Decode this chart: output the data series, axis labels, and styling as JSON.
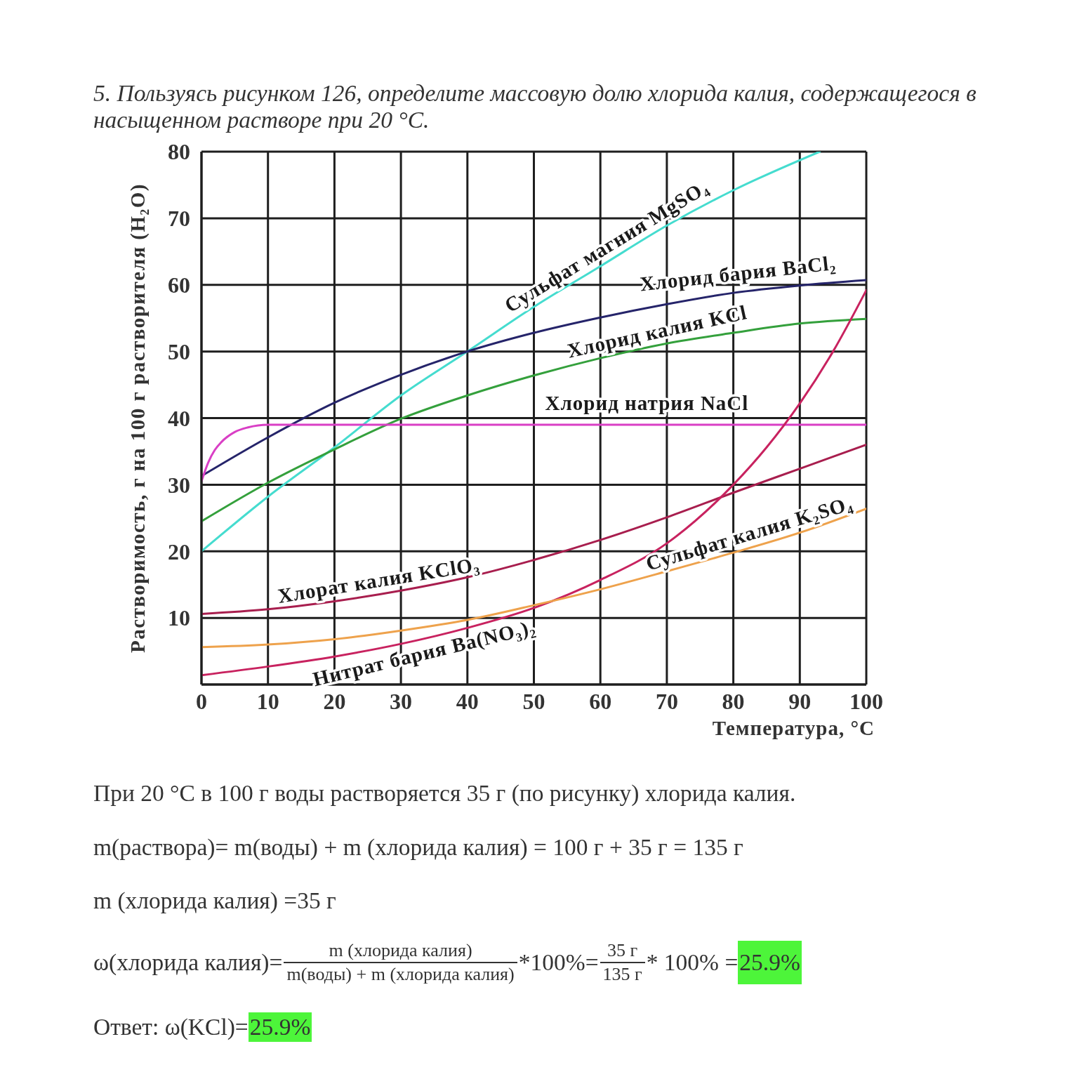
{
  "chart_data": {
    "type": "line",
    "title": "5. Пользуясь рисунком 126, определите массовую долю хлорида калия, содержащегося в насыщенном растворе при 20 °C.",
    "xlabel": "Температура, °C",
    "ylabel": "Растворимость, г на 100 г растворителя (H₂O)",
    "xlim": [
      0,
      100
    ],
    "xticks": [
      0,
      10,
      20,
      30,
      40,
      50,
      60,
      70,
      80,
      90,
      100
    ],
    "ylim": [
      0,
      80
    ],
    "yticks": [
      {
        "value": 0,
        "label": null
      },
      10,
      20,
      30,
      40,
      50,
      60,
      70,
      80
    ],
    "grid": true,
    "series": [
      {
        "name": "Сульфат магния MgSO₄",
        "color": "#45dccf",
        "x": [
          0,
          10,
          20,
          30,
          40,
          50,
          60,
          70,
          80,
          93
        ],
        "values": [
          20,
          28.2,
          35.6,
          43.4,
          50,
          56.7,
          62.8,
          68.9,
          74.2,
          80
        ]
      },
      {
        "name": "Хлорид бария BaCl₂",
        "color": "#25246a",
        "x": [
          0,
          10,
          20,
          30,
          40,
          50,
          60,
          70,
          80,
          90,
          100
        ],
        "values": [
          31.3,
          37.1,
          42.3,
          46.5,
          50,
          52.8,
          55.1,
          57.1,
          58.8,
          59.9,
          60.7
        ]
      },
      {
        "name": "Хлорид калия KCl",
        "color": "#34a03c",
        "x": [
          0,
          10,
          20,
          30,
          40,
          50,
          60,
          70,
          80,
          90,
          100
        ],
        "values": [
          24.5,
          30.3,
          35.3,
          39.9,
          43.4,
          46.4,
          49,
          51.2,
          52.8,
          54.2,
          54.9
        ]
      },
      {
        "name": "Хлорид натрия NaCl",
        "color": "#d93fc5",
        "x": [
          0,
          1,
          2,
          3,
          5,
          7,
          10,
          100
        ],
        "values": [
          30.5,
          33.3,
          35.2,
          36.4,
          37.9,
          38.6,
          39,
          39
        ]
      },
      {
        "name": "Хлорат калия KClO₃",
        "color": "#a81e4e",
        "x": [
          0,
          10,
          20,
          30,
          40,
          50,
          60,
          70,
          80,
          90,
          100
        ],
        "values": [
          10.6,
          11.3,
          12.5,
          14.1,
          16.1,
          18.7,
          21.7,
          25.1,
          28.8,
          32.4,
          36
        ]
      },
      {
        "name": "Нитрат бария Ba(NO₃)₂",
        "color": "#c8225f",
        "x": [
          0,
          10,
          20,
          30,
          40,
          50,
          60,
          70,
          80,
          85,
          90,
          95,
          100
        ],
        "values": [
          1.4,
          2.7,
          4.2,
          6.1,
          8.5,
          11.5,
          15.7,
          21.2,
          30,
          35.6,
          42.2,
          50,
          59.2
        ]
      },
      {
        "name": "Сульфат калия K₂SO₄",
        "color": "#eea24c",
        "x": [
          0,
          10,
          20,
          30,
          40,
          50,
          60,
          70,
          80,
          90,
          100
        ],
        "values": [
          5.6,
          6,
          6.8,
          8.1,
          9.7,
          11.9,
          14.3,
          17,
          19.8,
          22.8,
          26.4
        ]
      }
    ],
    "annotations": [
      "При 20 °C в 100 г воды растворяется 35 г (по рисунку) хлорида калия.",
      "m(раствора)= m(воды) + m (хлорида калия) = 100 г + 35 г = 135 г",
      "m (хлорида калия) =35 г",
      "ω(хлорида калия)=",
      "m (хлорида калия)",
      "m(воды) + m (хлорида калия)",
      "*100%=",
      "35 г",
      "135 г",
      "* 100% =",
      "25.9%",
      "Ответ: ω(KCl)=",
      "25.9%"
    ]
  }
}
